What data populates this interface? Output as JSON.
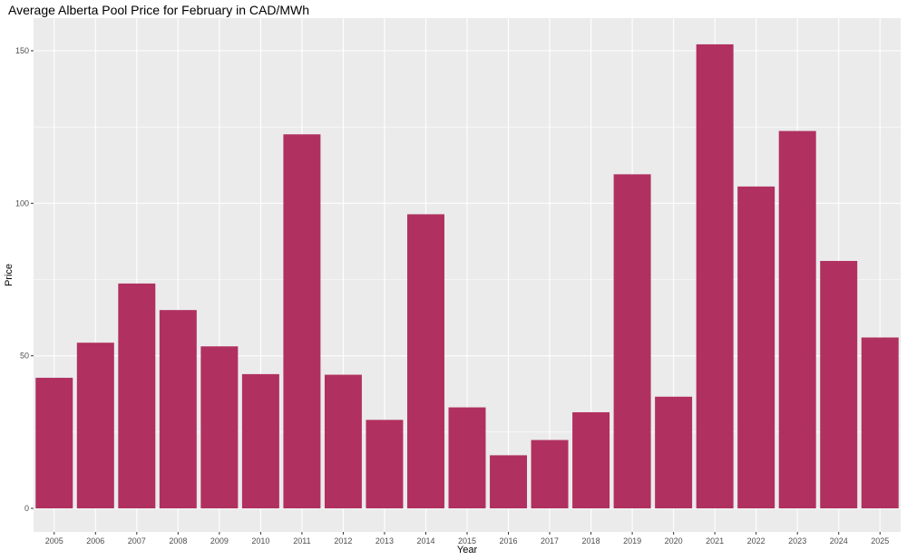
{
  "chart_data": {
    "type": "bar",
    "title": "Average Alberta Pool Price for February in CAD/MWh",
    "xlabel": "Year",
    "ylabel": "Price",
    "categories": [
      "2005",
      "2006",
      "2007",
      "2008",
      "2009",
      "2010",
      "2011",
      "2012",
      "2013",
      "2014",
      "2015",
      "2016",
      "2017",
      "2018",
      "2019",
      "2020",
      "2021",
      "2022",
      "2023",
      "2024",
      "2025"
    ],
    "values": [
      42.8,
      54.3,
      73.7,
      65.0,
      53.1,
      44.0,
      122.6,
      43.8,
      29.0,
      96.4,
      33.1,
      17.4,
      22.4,
      31.5,
      109.5,
      36.6,
      152.1,
      105.5,
      123.7,
      81.1,
      56.0
    ],
    "ylim": [
      0,
      160
    ],
    "yticks": [
      0,
      50,
      100,
      150
    ],
    "ytick_labels": [
      "0",
      "50",
      "100",
      "150"
    ],
    "grid": true,
    "bar_color": "#b03060",
    "panel_color": "#ebebeb",
    "grid_color": "#ffffff"
  }
}
